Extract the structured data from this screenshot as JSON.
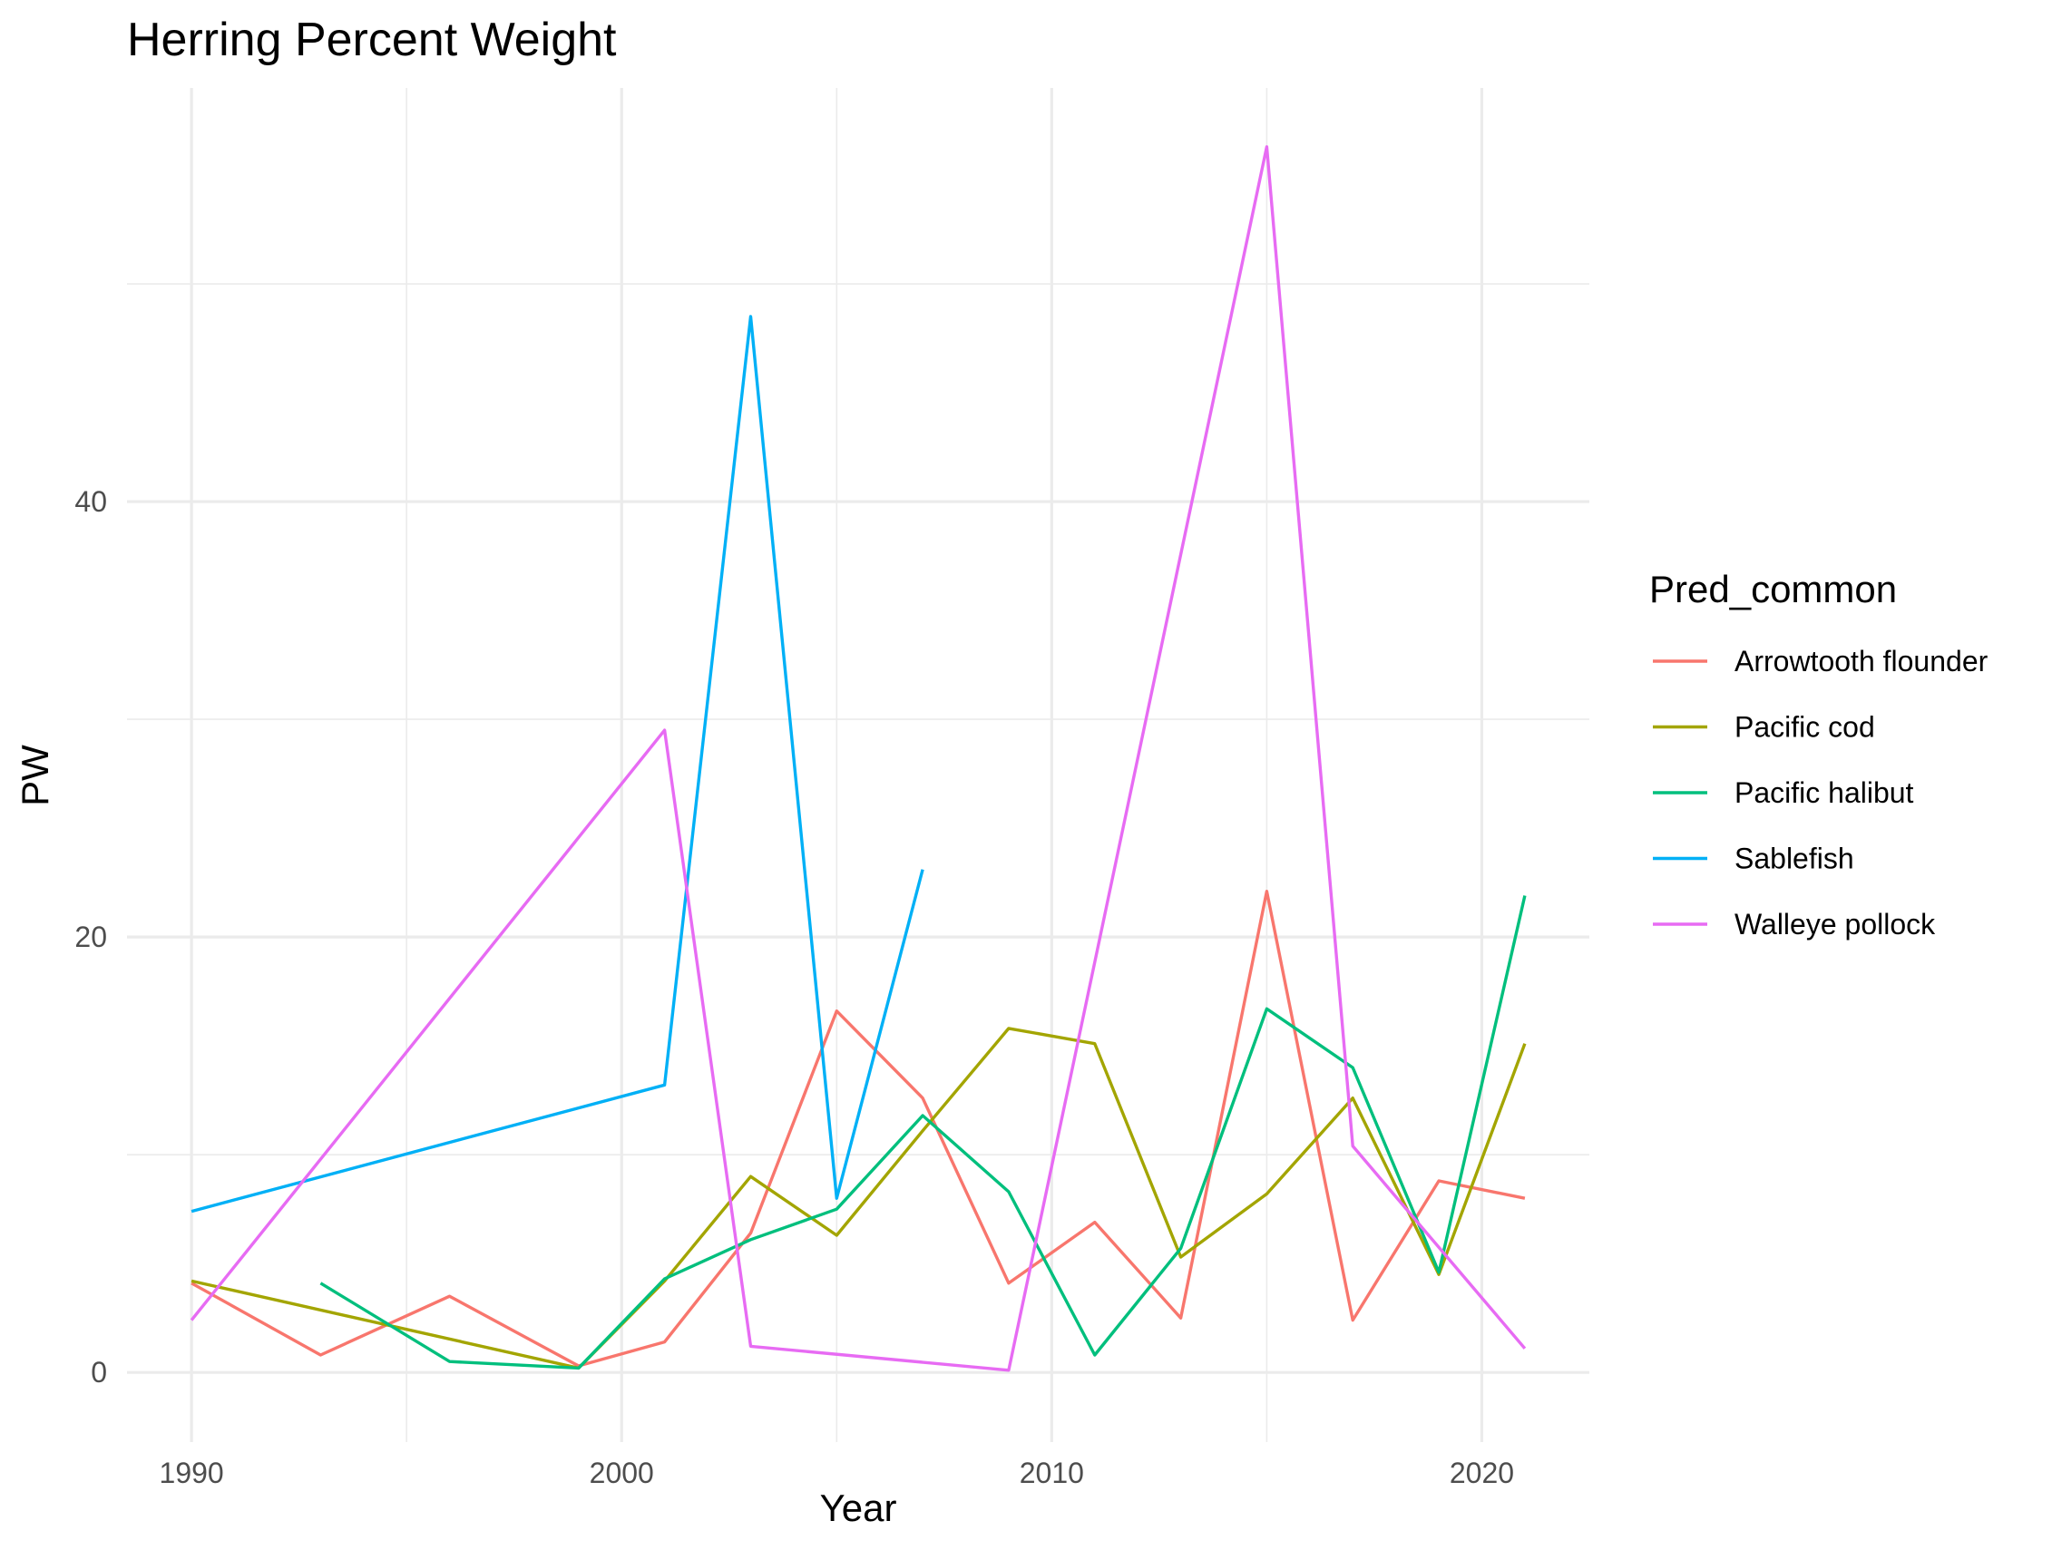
{
  "chart_data": {
    "type": "line",
    "title": "Herring Percent Weight",
    "xlabel": "Year",
    "ylabel": "PW",
    "xlim": [
      1988.5,
      2022.5
    ],
    "ylim": [
      -3.2,
      59
    ],
    "x_ticks": [
      1990,
      2000,
      2010,
      2020
    ],
    "y_ticks": [
      0,
      20,
      40
    ],
    "x_minor": [
      1995,
      2005,
      2015
    ],
    "y_minor": [
      10,
      30,
      50
    ],
    "grid": true,
    "legend": {
      "title": "Pred_common",
      "position": "right"
    },
    "series": [
      {
        "name": "Arrowtooth flounder",
        "color": "#F8766D",
        "points": [
          [
            1990,
            4.1
          ],
          [
            1993,
            0.8
          ],
          [
            1996,
            3.5
          ],
          [
            1999,
            0.3
          ],
          [
            2001,
            1.4
          ],
          [
            2003,
            6.4
          ],
          [
            2005,
            16.6
          ],
          [
            2007,
            12.6
          ],
          [
            2009,
            4.1
          ],
          [
            2011,
            6.9
          ],
          [
            2013,
            2.5
          ],
          [
            2015,
            22.1
          ],
          [
            2017,
            2.4
          ],
          [
            2019,
            8.8
          ],
          [
            2021,
            8.0
          ]
        ]
      },
      {
        "name": "Pacific cod",
        "color": "#A3A500",
        "points": [
          [
            1990,
            4.2
          ],
          [
            1999,
            0.2
          ],
          [
            2001,
            4.2
          ],
          [
            2003,
            9.0
          ],
          [
            2005,
            6.3
          ],
          [
            2007,
            11.1
          ],
          [
            2009,
            15.8
          ],
          [
            2011,
            15.1
          ],
          [
            2013,
            5.3
          ],
          [
            2015,
            8.2
          ],
          [
            2017,
            12.6
          ],
          [
            2019,
            4.5
          ],
          [
            2021,
            15.1
          ]
        ]
      },
      {
        "name": "Pacific halibut",
        "color": "#00BF7D",
        "points": [
          [
            1993,
            4.1
          ],
          [
            1996,
            0.5
          ],
          [
            1999,
            0.2
          ],
          [
            2001,
            4.3
          ],
          [
            2003,
            6.1
          ],
          [
            2005,
            7.5
          ],
          [
            2007,
            11.8
          ],
          [
            2009,
            8.3
          ],
          [
            2011,
            0.8
          ],
          [
            2013,
            5.7
          ],
          [
            2015,
            16.7
          ],
          [
            2017,
            14.0
          ],
          [
            2019,
            4.6
          ],
          [
            2021,
            21.9
          ]
        ]
      },
      {
        "name": "Sablefish",
        "color": "#00B0F6",
        "points": [
          [
            1990,
            7.4
          ],
          [
            2001,
            13.2
          ],
          [
            2003,
            48.5
          ],
          [
            2005,
            8.0
          ],
          [
            2007,
            23.1
          ]
        ]
      },
      {
        "name": "Walleye pollock",
        "color": "#E76BF3",
        "points": [
          [
            1990,
            2.4
          ],
          [
            2001,
            29.5
          ],
          [
            2003,
            1.2
          ],
          [
            2009,
            0.1
          ],
          [
            2015,
            56.3
          ],
          [
            2017,
            10.4
          ],
          [
            2021,
            1.1
          ]
        ]
      }
    ]
  }
}
